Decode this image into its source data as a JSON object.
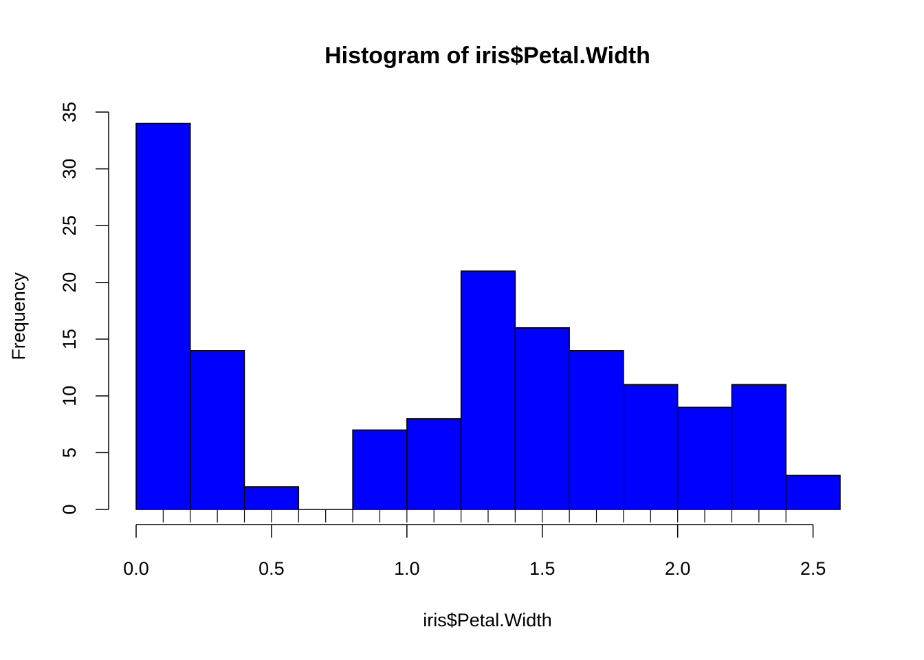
{
  "chart_data": {
    "type": "bar",
    "title": "Histogram of iris$Petal.Width",
    "xlabel": "iris$Petal.Width",
    "ylabel": "Frequency",
    "bins": [
      {
        "x0": 0.0,
        "x1": 0.2,
        "count": 34
      },
      {
        "x0": 0.2,
        "x1": 0.4,
        "count": 14
      },
      {
        "x0": 0.4,
        "x1": 0.6,
        "count": 2
      },
      {
        "x0": 0.6,
        "x1": 0.8,
        "count": 0
      },
      {
        "x0": 0.8,
        "x1": 1.0,
        "count": 7
      },
      {
        "x0": 1.0,
        "x1": 1.2,
        "count": 8
      },
      {
        "x0": 1.2,
        "x1": 1.4,
        "count": 21
      },
      {
        "x0": 1.4,
        "x1": 1.6,
        "count": 16
      },
      {
        "x0": 1.6,
        "x1": 1.8,
        "count": 14
      },
      {
        "x0": 1.8,
        "x1": 2.0,
        "count": 11
      },
      {
        "x0": 2.0,
        "x1": 2.2,
        "count": 9
      },
      {
        "x0": 2.2,
        "x1": 2.4,
        "count": 11
      },
      {
        "x0": 2.4,
        "x1": 2.6,
        "count": 3
      }
    ],
    "xlim": [
      0.0,
      2.6
    ],
    "ylim": [
      0,
      35
    ],
    "x_ticks": [
      "0.0",
      "0.5",
      "1.0",
      "1.5",
      "2.0",
      "2.5"
    ],
    "y_ticks": [
      "0",
      "5",
      "10",
      "15",
      "20",
      "25",
      "30",
      "35"
    ],
    "rug": true,
    "grid": false,
    "bar_color": "#0000ff",
    "bar_border": "#000000"
  }
}
